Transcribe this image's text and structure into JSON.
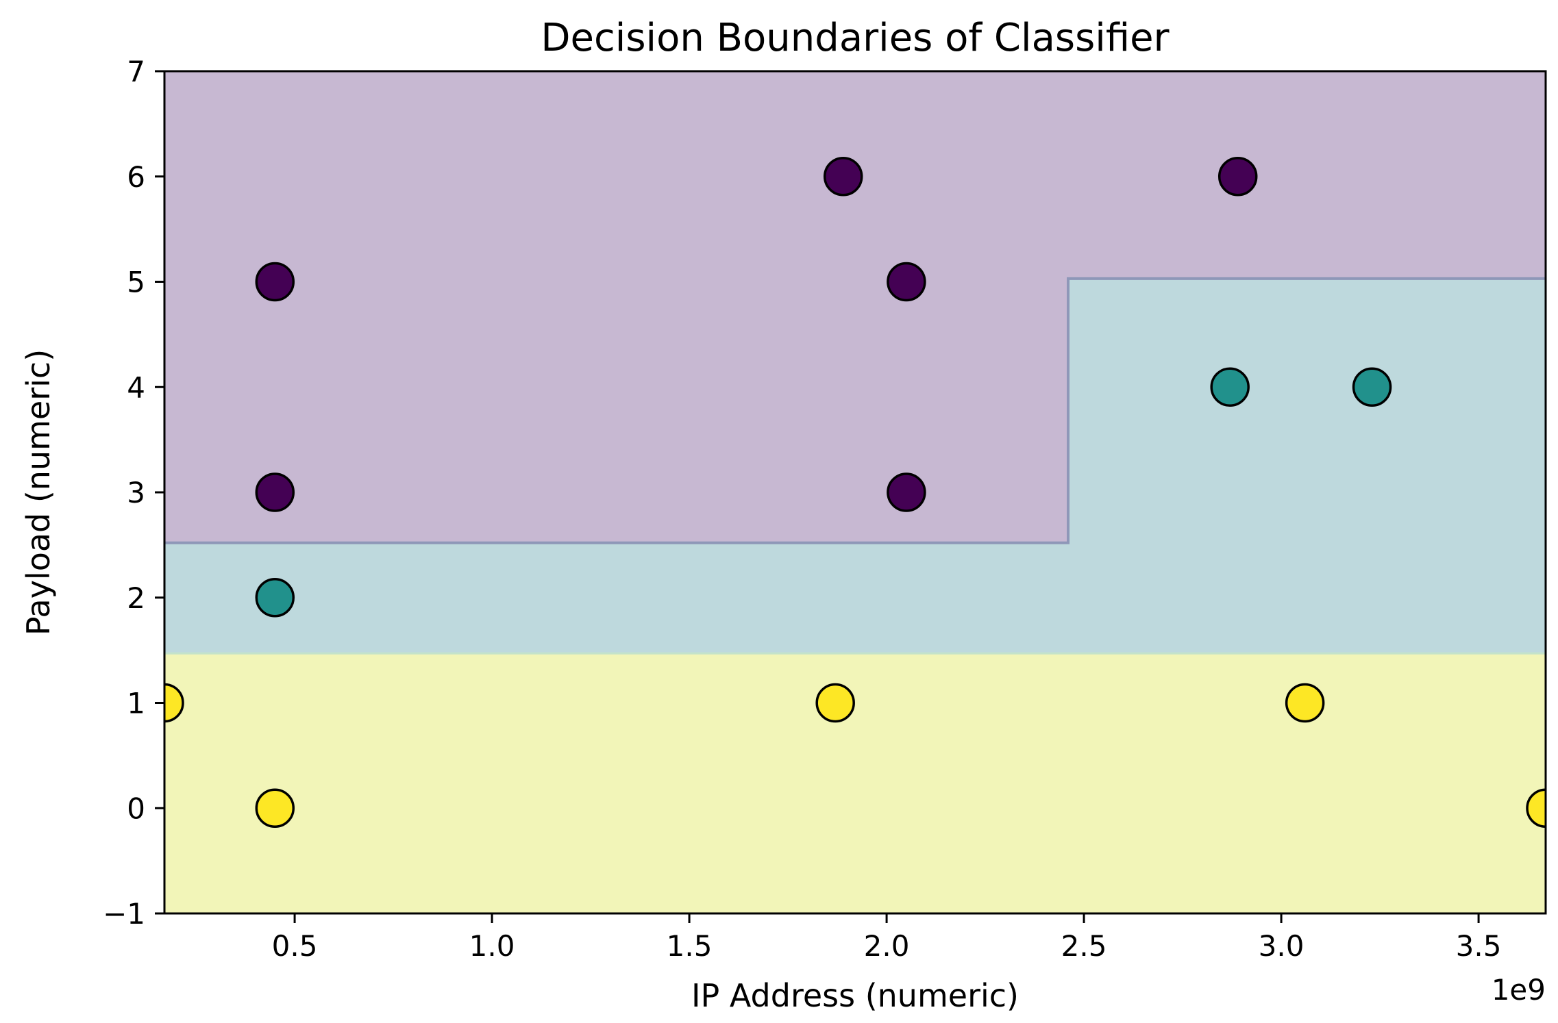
{
  "chart_data": {
    "type": "scatter",
    "title": "Decision Boundaries of Classifier",
    "xlabel": "IP Address (numeric)",
    "ylabel": "Payload (numeric)",
    "x_offset_label": "1e9",
    "xlim": [
      0.17,
      3.67
    ],
    "ylim": [
      -1,
      7
    ],
    "xticks": [
      0.5,
      1.0,
      1.5,
      2.0,
      2.5,
      3.0,
      3.5
    ],
    "xtick_labels": [
      "0.5",
      "1.0",
      "1.5",
      "2.0",
      "2.5",
      "3.0",
      "3.5"
    ],
    "yticks": [
      -1,
      0,
      1,
      2,
      3,
      4,
      5,
      6,
      7
    ],
    "ytick_labels": [
      "−1",
      "0",
      "1",
      "2",
      "3",
      "4",
      "5",
      "6",
      "7"
    ],
    "grid": false,
    "legend": "none",
    "class_colors": {
      "0": "#440154",
      "1": "#21918c",
      "2": "#fde725"
    },
    "region_colors": {
      "0": "#c7b8d2",
      "1": "#bed9dd",
      "2": "#f2f5b8"
    },
    "regions": [
      {
        "class": 2,
        "polygon": [
          [
            0.17,
            -1
          ],
          [
            3.67,
            -1
          ],
          [
            3.67,
            1.47
          ],
          [
            0.17,
            1.47
          ]
        ]
      },
      {
        "class": 1,
        "polygon": [
          [
            0.17,
            1.47
          ],
          [
            3.67,
            1.47
          ],
          [
            3.67,
            5.03
          ],
          [
            2.46,
            5.03
          ],
          [
            2.46,
            2.52
          ],
          [
            0.17,
            2.52
          ]
        ]
      },
      {
        "class": 0,
        "polygon": [
          [
            0.17,
            2.52
          ],
          [
            2.46,
            2.52
          ],
          [
            2.46,
            5.03
          ],
          [
            3.67,
            5.03
          ],
          [
            3.67,
            7
          ],
          [
            0.17,
            7
          ]
        ]
      }
    ],
    "points": [
      {
        "x": 0.45,
        "y": 5,
        "class": 0
      },
      {
        "x": 0.45,
        "y": 3,
        "class": 0
      },
      {
        "x": 1.89,
        "y": 6,
        "class": 0
      },
      {
        "x": 2.05,
        "y": 5,
        "class": 0
      },
      {
        "x": 2.05,
        "y": 3,
        "class": 0
      },
      {
        "x": 2.89,
        "y": 6,
        "class": 0
      },
      {
        "x": 0.45,
        "y": 2,
        "class": 1
      },
      {
        "x": 2.87,
        "y": 4,
        "class": 1
      },
      {
        "x": 3.23,
        "y": 4,
        "class": 1
      },
      {
        "x": 0.17,
        "y": 1,
        "class": 2
      },
      {
        "x": 0.45,
        "y": 0,
        "class": 2
      },
      {
        "x": 1.87,
        "y": 1,
        "class": 2
      },
      {
        "x": 3.06,
        "y": 1,
        "class": 2
      },
      {
        "x": 3.67,
        "y": 0,
        "class": 2
      }
    ]
  }
}
